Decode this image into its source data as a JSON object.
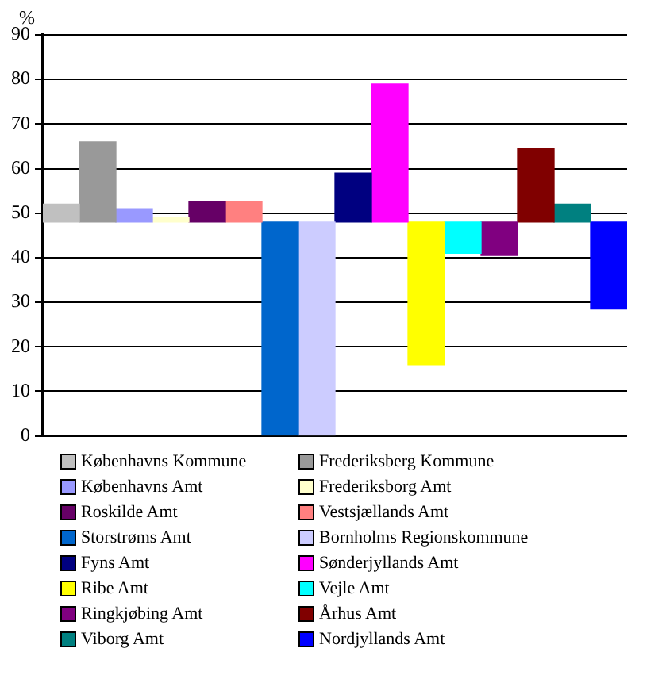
{
  "chart_data": {
    "type": "bar",
    "ylabel": "%",
    "categories": [
      null
    ],
    "series": [
      {
        "name": "Københavns Kommune",
        "color": "#c0c0c0",
        "base": [
          48
        ],
        "values": [
          4
        ]
      },
      {
        "name": "Frederiksberg Kommune",
        "color": "#999999",
        "base": [
          48
        ],
        "values": [
          18
        ]
      },
      {
        "name": "Københavns Amt",
        "color": "#9999ff",
        "base": [
          48
        ],
        "values": [
          3
        ]
      },
      {
        "name": "Frederiksborg Amt",
        "color": "#ffffcc",
        "base": [
          48
        ],
        "values": [
          1
        ]
      },
      {
        "name": "Roskilde Amt",
        "color": "#660066",
        "base": [
          48
        ],
        "values": [
          4.5
        ]
      },
      {
        "name": "Vestsjællands Amt",
        "color": "#ff8080",
        "base": [
          48
        ],
        "values": [
          4.5
        ]
      },
      {
        "name": "Storstrøms Amt",
        "color": "#0066cc",
        "base": [
          48
        ],
        "values": [
          -48
        ]
      },
      {
        "name": "Bornholms Regionskommune",
        "color": "#ccccff",
        "base": [
          48
        ],
        "values": [
          -48
        ]
      },
      {
        "name": "Fyns Amt",
        "color": "#000080",
        "base": [
          48
        ],
        "values": [
          11
        ]
      },
      {
        "name": "Sønderjyllands Amt",
        "color": "#ff00ff",
        "base": [
          48
        ],
        "values": [
          31
        ]
      },
      {
        "name": "Ribe Amt",
        "color": "#ffff00",
        "base": [
          48
        ],
        "values": [
          -32
        ]
      },
      {
        "name": "Vejle Amt",
        "color": "#00ffff",
        "base": [
          48
        ],
        "values": [
          -7
        ]
      },
      {
        "name": "Ringkjøbing Amt",
        "color": "#800080",
        "base": [
          48
        ],
        "values": [
          -7.5
        ]
      },
      {
        "name": "Århus Amt",
        "color": "#800000",
        "base": [
          48
        ],
        "values": [
          16.5
        ]
      },
      {
        "name": "Viborg Amt",
        "color": "#008080",
        "base": [
          48
        ],
        "values": [
          4
        ]
      },
      {
        "name": "Nordjyllands Amt",
        "color": "#0000ff",
        "base": [
          48
        ],
        "values": [
          -19.5
        ]
      }
    ],
    "ylim": [
      0,
      90
    ],
    "yticks": [
      0,
      10,
      20,
      30,
      40,
      50,
      60,
      70,
      80,
      90
    ],
    "grid": "y",
    "legend": "bottom",
    "tick_labels": "y"
  }
}
